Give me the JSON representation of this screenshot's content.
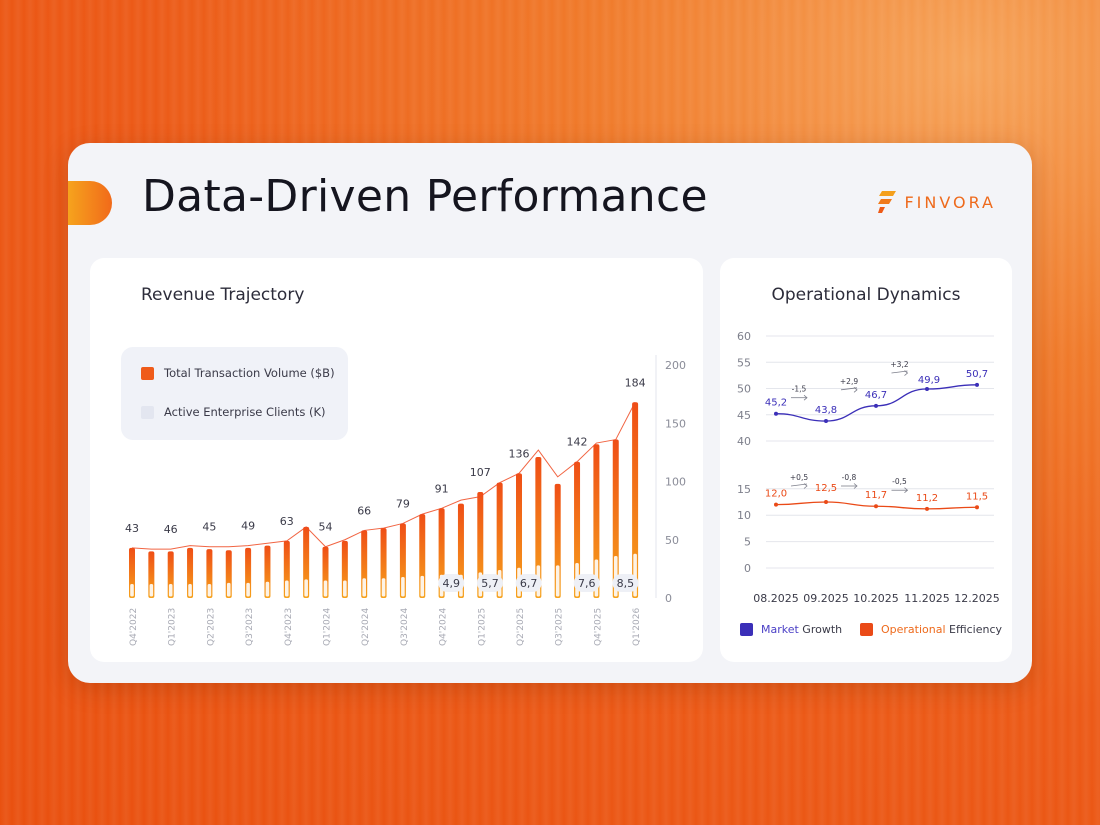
{
  "header": {
    "title": "Data-Driven Performance",
    "brand": "FINVORA"
  },
  "colors": {
    "accent": "#ee6a1c",
    "bar_top": "#ef4e16",
    "bar_bottom": "#f6a21c",
    "market": "#3b2fb8",
    "operational": "#ea4a17"
  },
  "chart_data": [
    {
      "type": "bar",
      "title": "Revenue Trajectory",
      "categories": [
        "Q4'2022",
        "",
        "Q1'2023",
        "",
        "Q2'2023",
        "",
        "Q3'2023",
        "",
        "Q4'2023",
        "",
        "Q1'2024",
        "",
        "Q2'2024",
        "",
        "Q3'2024",
        "",
        "Q4'2024",
        "",
        "Q1'2025",
        "",
        "Q2'2025",
        "",
        "Q3'2025",
        "",
        "Q4'2025",
        "",
        "Q1'2026"
      ],
      "series": [
        {
          "name": "Total Transaction Volume ($B)",
          "values": [
            43,
            40,
            40,
            43,
            42,
            41,
            43,
            45,
            49,
            61,
            44,
            49,
            58,
            60,
            64,
            72,
            77,
            81,
            91,
            99,
            107,
            121,
            98,
            117,
            132,
            136,
            168
          ]
        },
        {
          "name": "Active Enterprise Clients (K)",
          "values": [
            12,
            12,
            12,
            12,
            12,
            13,
            13,
            14,
            15,
            16,
            15,
            15,
            17,
            17,
            18,
            19,
            20,
            20,
            22,
            24,
            26,
            28,
            28,
            30,
            33,
            36,
            38
          ]
        }
      ],
      "line_values": [
        43,
        42,
        42,
        45,
        44,
        44,
        45,
        47,
        49,
        61,
        44,
        50,
        58,
        60,
        64,
        72,
        77,
        84,
        87,
        99,
        107,
        127,
        104,
        117,
        133,
        136,
        168
      ],
      "data_labels": [
        {
          "index": 0,
          "text": "43"
        },
        {
          "index": 2,
          "text": "46"
        },
        {
          "index": 4,
          "text": "45"
        },
        {
          "index": 6,
          "text": "49"
        },
        {
          "index": 8,
          "text": "63"
        },
        {
          "index": 10,
          "text": "54"
        },
        {
          "index": 12,
          "text": "66"
        },
        {
          "index": 14,
          "text": "79"
        },
        {
          "index": 16,
          "text": "91"
        },
        {
          "index": 18,
          "text": "107"
        },
        {
          "index": 20,
          "text": "136"
        },
        {
          "index": 23,
          "text": "142"
        },
        {
          "index": 26,
          "text": "184"
        }
      ],
      "client_labels": [
        {
          "index": 16,
          "text": "4,9"
        },
        {
          "index": 18,
          "text": "5,7"
        },
        {
          "index": 20,
          "text": "6,7"
        },
        {
          "index": 23,
          "text": "7,6"
        },
        {
          "index": 25,
          "text": "8,5"
        }
      ],
      "yticks": [
        0,
        50,
        100,
        150,
        200
      ],
      "ylim": [
        0,
        200
      ],
      "legend": [
        "Total Transaction Volume ($B)",
        "Active Enterprise Clients (K)"
      ]
    },
    {
      "type": "line",
      "title": "Operational Dynamics",
      "categories": [
        "08.2025",
        "09.2025",
        "10.2025",
        "11.2025",
        "12.2025"
      ],
      "series": [
        {
          "name": "Market Growth",
          "values": [
            45.2,
            43.8,
            46.7,
            49.9,
            50.7
          ],
          "labels": [
            "45,2",
            "43,8",
            "46,7",
            "49,9",
            "50,7"
          ],
          "deltas": [
            "-1,5",
            "+2,9",
            "+3,2"
          ]
        },
        {
          "name": "Operational Efficiency",
          "values": [
            12.0,
            12.5,
            11.7,
            11.2,
            11.5
          ],
          "labels": [
            "12,0",
            "12,5",
            "11,7",
            "11,2",
            "11,5"
          ],
          "deltas": [
            "+0,5",
            "-0,8",
            "-0,5"
          ]
        }
      ],
      "upper_ticks": [
        40,
        45,
        50,
        55,
        60
      ],
      "lower_ticks": [
        0,
        5,
        10,
        15
      ],
      "legend": [
        {
          "first": "Market",
          "second": " Growth"
        },
        {
          "first": "Operational",
          "second": " Efficiency"
        }
      ]
    }
  ]
}
